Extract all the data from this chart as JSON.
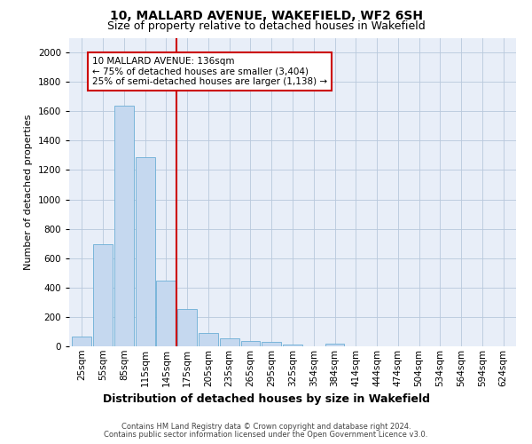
{
  "title1": "10, MALLARD AVENUE, WAKEFIELD, WF2 6SH",
  "title2": "Size of property relative to detached houses in Wakefield",
  "xlabel": "Distribution of detached houses by size in Wakefield",
  "ylabel": "Number of detached properties",
  "bar_labels": [
    "25sqm",
    "55sqm",
    "85sqm",
    "115sqm",
    "145sqm",
    "175sqm",
    "205sqm",
    "235sqm",
    "265sqm",
    "295sqm",
    "325sqm",
    "354sqm",
    "384sqm",
    "414sqm",
    "444sqm",
    "474sqm",
    "504sqm",
    "534sqm",
    "564sqm",
    "594sqm",
    "624sqm"
  ],
  "bar_values": [
    68,
    695,
    1635,
    1285,
    445,
    253,
    88,
    52,
    38,
    28,
    15,
    0,
    18,
    0,
    0,
    0,
    0,
    0,
    0,
    0,
    0
  ],
  "bar_color": "#c5d8ef",
  "bar_edge_color": "#6baed6",
  "property_line_x": 4.5,
  "annotation_title": "10 MALLARD AVENUE: 136sqm",
  "annotation_line1": "← 75% of detached houses are smaller (3,404)",
  "annotation_line2": "25% of semi-detached houses are larger (1,138) →",
  "annotation_box_color": "#ffffff",
  "annotation_box_edge_color": "#cc0000",
  "red_line_color": "#cc0000",
  "ylim": [
    0,
    2100
  ],
  "yticks": [
    0,
    200,
    400,
    600,
    800,
    1000,
    1200,
    1400,
    1600,
    1800,
    2000
  ],
  "footnote1": "Contains HM Land Registry data © Crown copyright and database right 2024.",
  "footnote2": "Contains public sector information licensed under the Open Government Licence v3.0.",
  "bg_color": "#ffffff",
  "plot_bg_color": "#e8eef8",
  "grid_color": "#b8c8dc",
  "title_fontsize": 10,
  "subtitle_fontsize": 9,
  "ylabel_fontsize": 8,
  "xlabel_fontsize": 9,
  "tick_fontsize": 7.5,
  "annotation_fontsize": 7.5,
  "footnote_fontsize": 6
}
